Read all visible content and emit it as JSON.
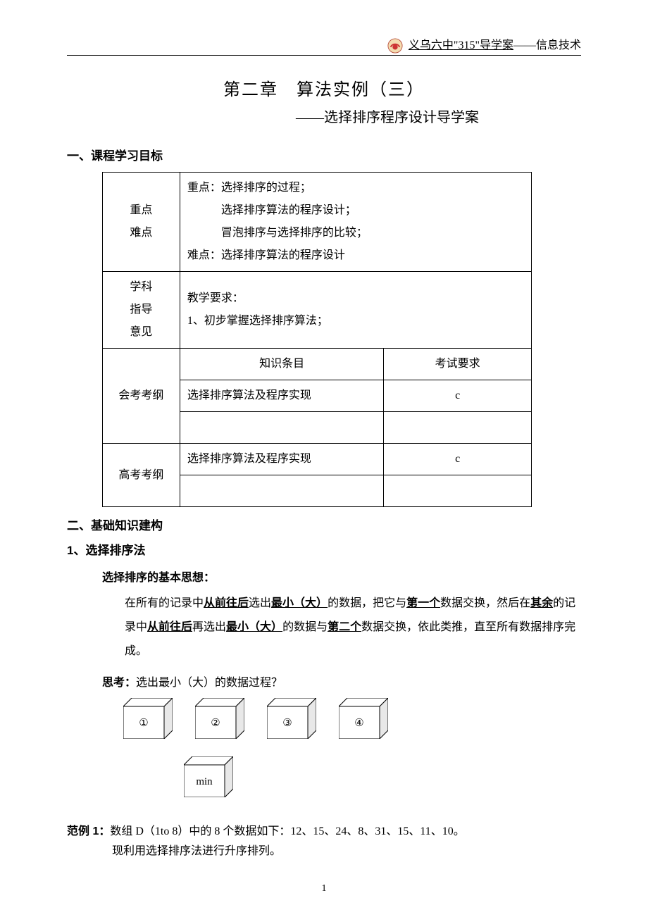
{
  "header": {
    "school": "义乌六中",
    "code": "\"315\"",
    "label": "导学案",
    "sep": "——",
    "subject": "信息技术"
  },
  "title": {
    "line1": "第二章　算法实例（三）",
    "line2": "——选择排序程序设计导学案"
  },
  "sections": {
    "s1": "一、课程学习目标",
    "s2": "二、基础知识建构",
    "s2_1": "1、选择排序法"
  },
  "table": {
    "r1_label": "重点\n难点",
    "r1_content_l1": "重点：选择排序的过程；",
    "r1_content_l2": "选择排序算法的程序设计；",
    "r1_content_l3": "冒泡排序与选择排序的比较；",
    "r1_content_l4": "难点：选择排序算法的程序设计",
    "r2_label": "学科\n指导\n意见",
    "r2_content_l1": "教学要求：",
    "r2_content_l2": "1、初步掌握选择排序算法；",
    "r3_label": "会考考纲",
    "r3_h1": "知识条目",
    "r3_h2": "考试要求",
    "r3_c1": "选择排序算法及程序实现",
    "r3_c2": "c",
    "r4_label": "高考考纲",
    "r4_c1": "选择排序算法及程序实现",
    "r4_c2": "c"
  },
  "idea": {
    "h": "选择排序的基本思想：",
    "t1": "在所有的记录中",
    "u1": "从前往后",
    "t2": "选出",
    "u2": "最小（大）",
    "t3": "的数据，把它与",
    "u3": "第一个",
    "t4": "数据交换，然后在",
    "u4": "其余",
    "t5": "的记录中",
    "u5": "从前往后",
    "t6": "再选出",
    "u6": "最小（大）",
    "t7": "的数据与",
    "u7": "第二个",
    "t8": "数据交换，依此类推，直至所有数据排序完成。"
  },
  "think": {
    "label": "思考：",
    "text": "选出最小（大）的数据过程？"
  },
  "boxes": {
    "b1": "①",
    "b2": "②",
    "b3": "③",
    "b4": "④",
    "min": "min"
  },
  "example": {
    "label": "范例 1：",
    "line1": "数组 D（1to 8）中的 8 个数据如下：12、15、24、8、31、15、11、10。",
    "line2": "现利用选择排序法进行升序排列。"
  },
  "page_num": "1",
  "cube_style": {
    "w": 58,
    "h": 46,
    "depth": 12,
    "fill_front": "#ffffff",
    "fill_top": "#ffffff",
    "fill_side": "#e8e8e8",
    "stroke": "#000000"
  }
}
